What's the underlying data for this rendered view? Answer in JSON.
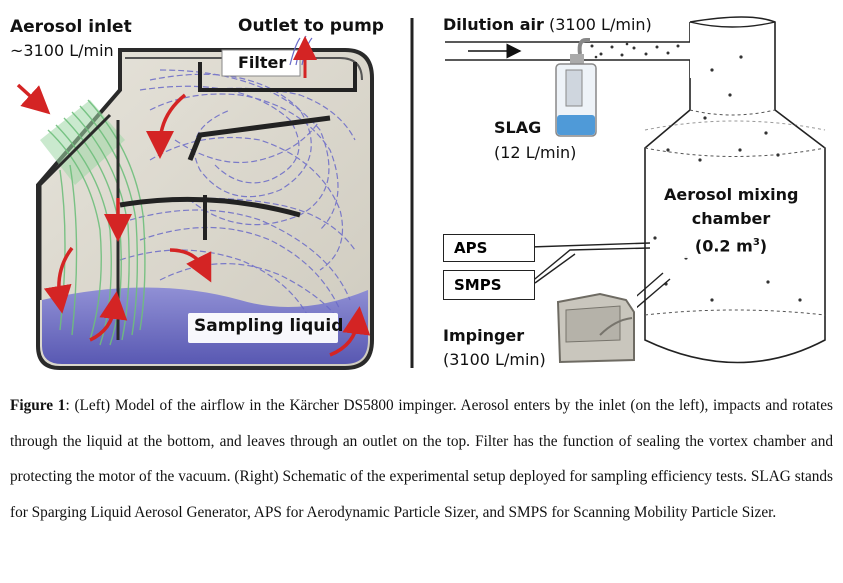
{
  "left_panel": {
    "aerosol_inlet": "Aerosol inlet",
    "inlet_flow": "~3100 L/min",
    "outlet": "Outlet to pump",
    "filter": "Filter",
    "sampling_liquid": "Sampling liquid"
  },
  "right_panel": {
    "dilution_air_label": "Dilution air",
    "dilution_air_flow": "(3100 L/min)",
    "slag": "SLAG",
    "slag_flow": "(12 L/min)",
    "mixing_chamber_line1": "Aerosol mixing",
    "mixing_chamber_line2": "chamber",
    "mixing_chamber_line3": "(0.2 m",
    "mixing_chamber_sup": "3",
    "mixing_chamber_close": ")",
    "aps": "APS",
    "smps": "SMPS",
    "impinger": "Impinger",
    "impinger_flow": "(3100 L/min)"
  },
  "caption": {
    "lead": "Figure 1",
    "text": ":  (Left) Model of the airflow in the Kärcher DS5800 impinger. Aerosol enters by the inlet (on the left), impacts and rotates through the liquid at the bottom, and leaves through an outlet on the top. Filter has the function of sealing the vortex chamber and protecting the motor of the vacuum. (Right) Schematic of the experimental setup deployed for sampling efficiency tests. SLAG stands for Sparging Liquid Aerosol Generator, APS for Aerodynamic Particle Sizer, and SMPS for Scanning Mobility Particle Sizer."
  },
  "colors": {
    "liquid": "#5e5ebd",
    "flow_green": "#7fc98a",
    "flow_blue": "#6a6ac8",
    "arrow_red": "#d42424",
    "housing": "#333333"
  }
}
